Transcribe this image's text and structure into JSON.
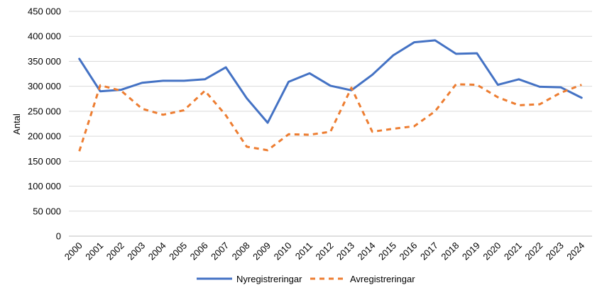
{
  "chart_data": {
    "type": "line",
    "title": "",
    "xlabel": "",
    "ylabel": "Antal",
    "categories": [
      "2000",
      "2001",
      "2002",
      "2003",
      "2004",
      "2005",
      "2006",
      "2007",
      "2008",
      "2009",
      "2010",
      "2011",
      "2012",
      "2013",
      "2014",
      "2015",
      "2016",
      "2017",
      "2018",
      "2019",
      "2020",
      "2021",
      "2022",
      "2023",
      "2024"
    ],
    "y_ticks": [
      "0",
      "50 000",
      "100 000",
      "150 000",
      "200 000",
      "250 000",
      "300 000",
      "350 000",
      "400 000",
      "450 000"
    ],
    "ylim": [
      0,
      450000
    ],
    "grid": "horizontal",
    "legend_position": "bottom",
    "series": [
      {
        "name": "Nyregistreringar",
        "color": "#4472C4",
        "style": "solid",
        "values": [
          355000,
          290000,
          293000,
          307000,
          311000,
          311000,
          314000,
          338000,
          276000,
          227000,
          309000,
          326000,
          301000,
          292000,
          323000,
          362000,
          388000,
          392000,
          365000,
          366000,
          303000,
          314000,
          299000,
          298000,
          277000
        ]
      },
      {
        "name": "Avregistreringar",
        "color": "#ED7D31",
        "style": "dashed",
        "values": [
          170000,
          302000,
          291000,
          255000,
          243000,
          252000,
          291000,
          242000,
          179000,
          172000,
          204000,
          203000,
          209000,
          297000,
          209000,
          215000,
          220000,
          250000,
          304000,
          303000,
          278000,
          262000,
          264000,
          287000,
          303000
        ]
      }
    ]
  }
}
